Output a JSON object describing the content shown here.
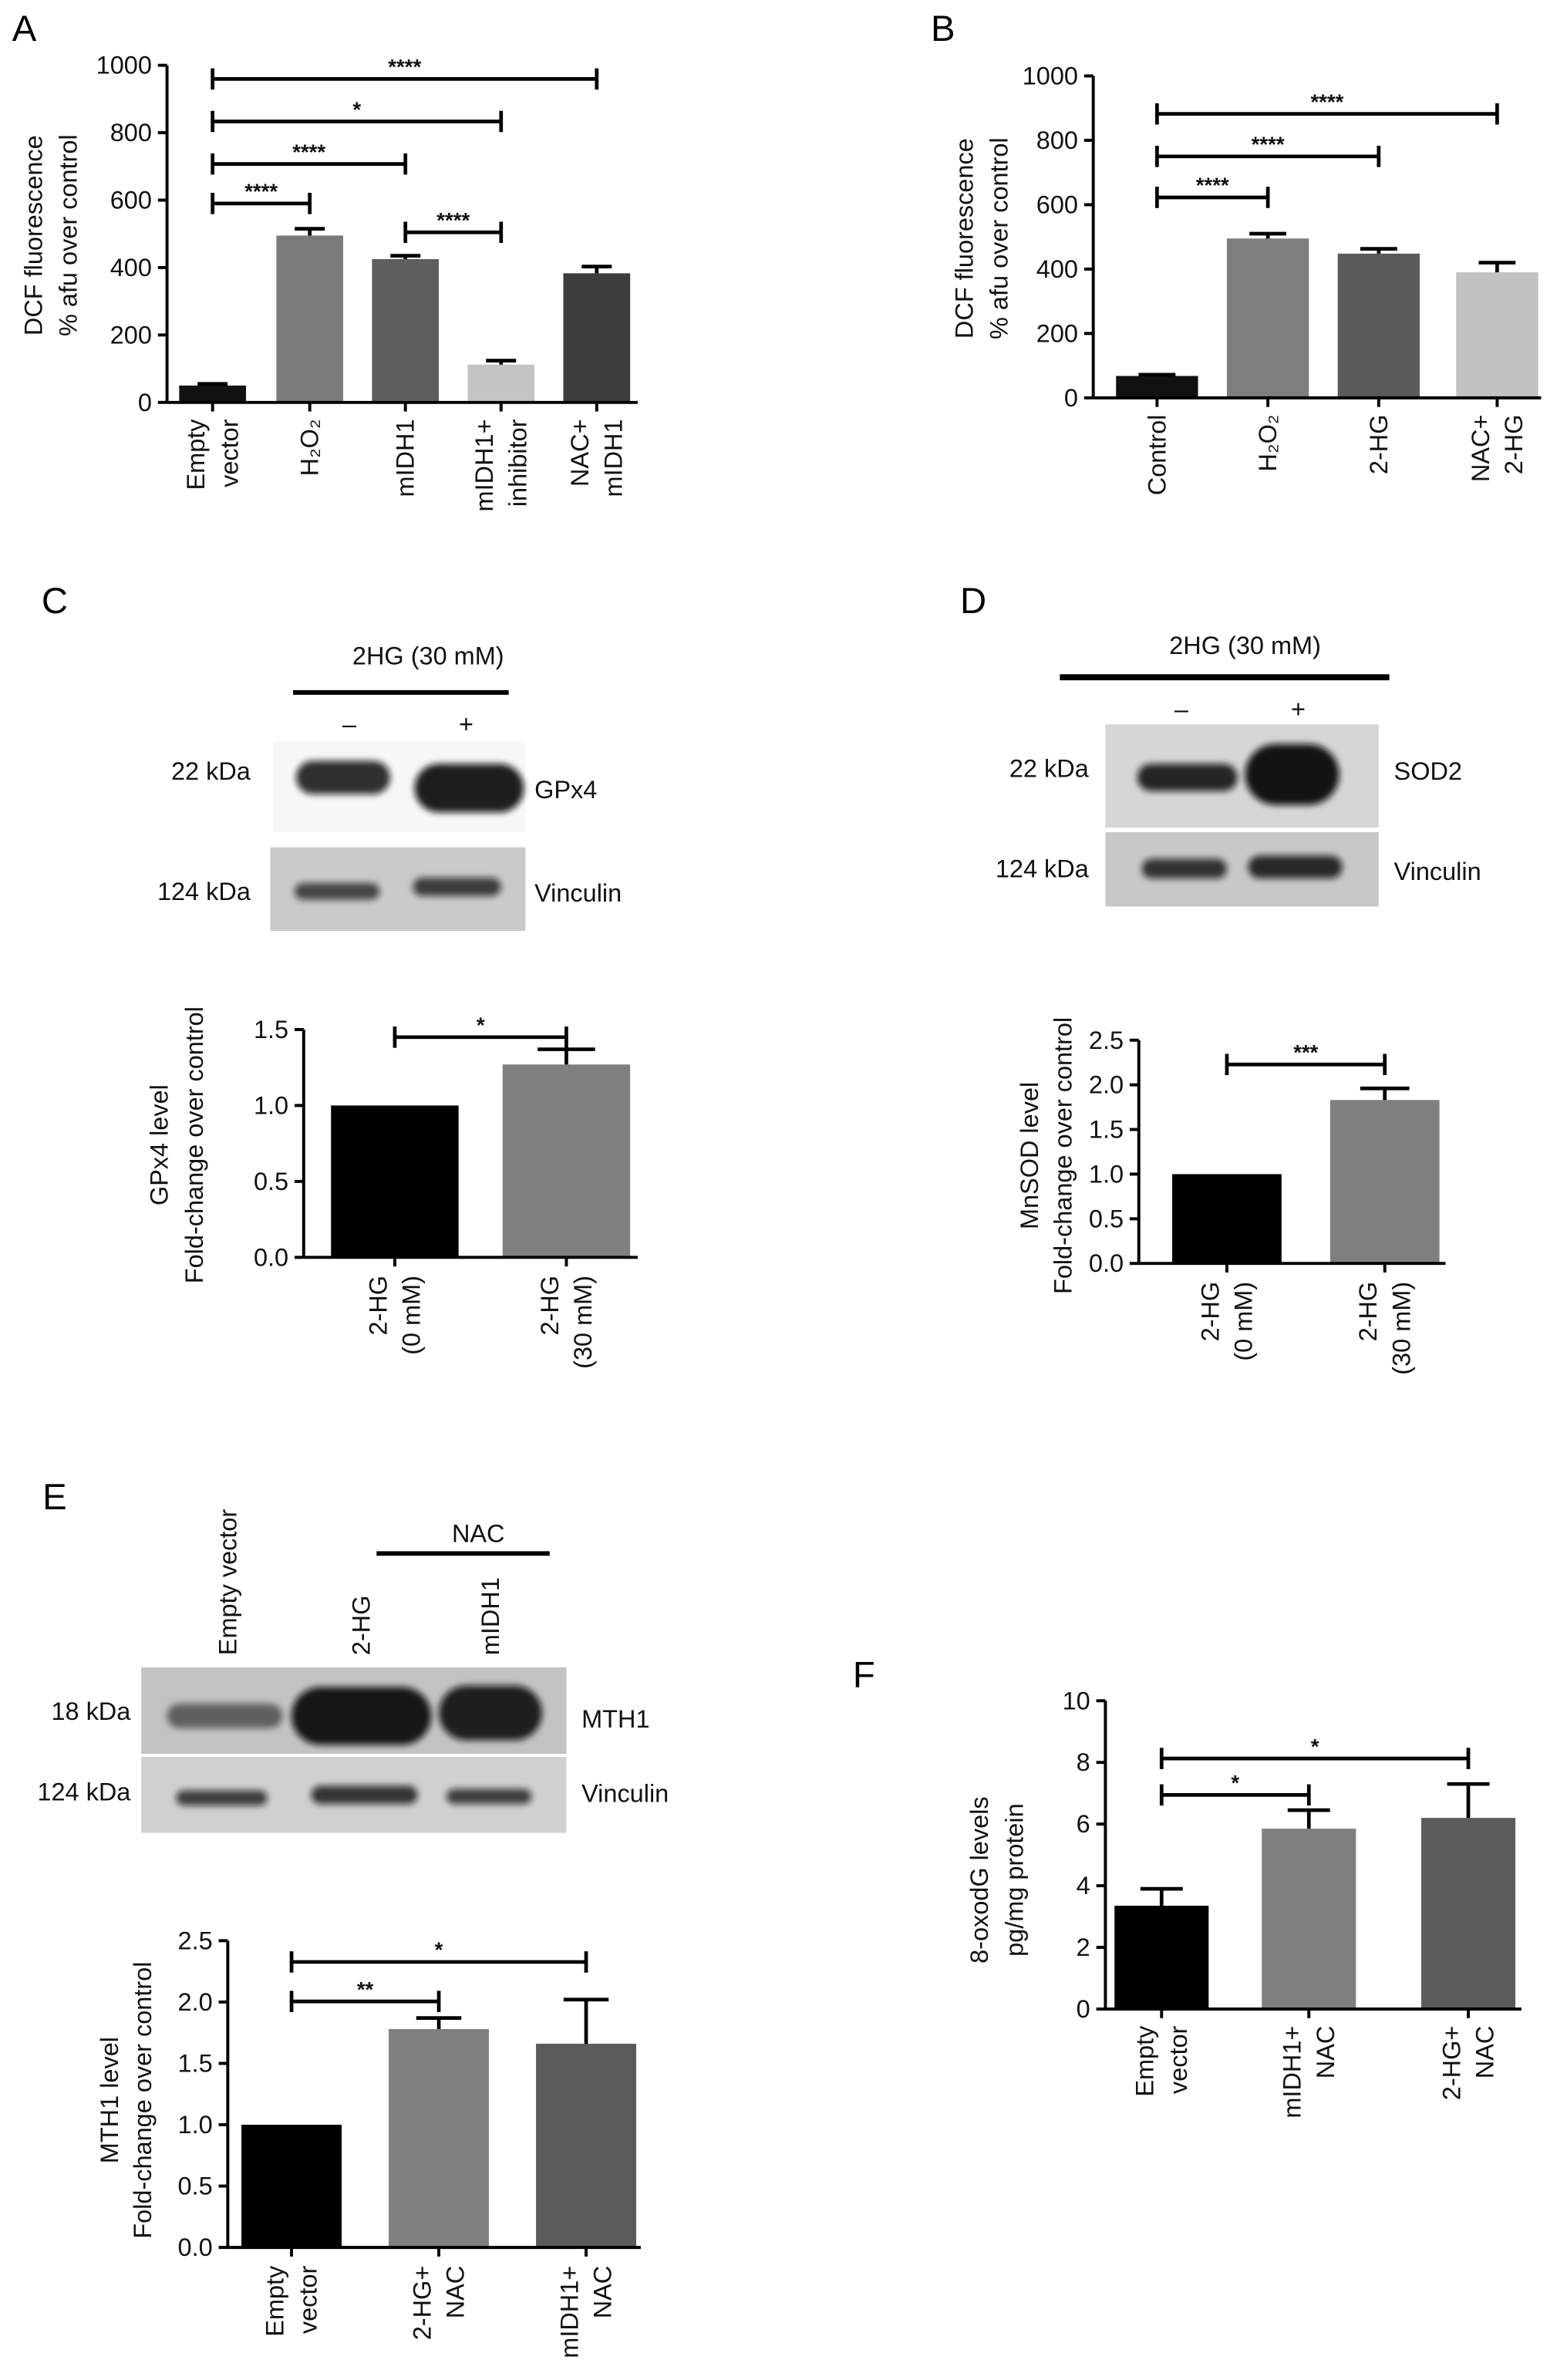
{
  "blots": {
    "C": {
      "treatment": "2HG (30 mM)",
      "lanes": [
        "–",
        "+"
      ],
      "rows": [
        {
          "kda": "22 kDa",
          "protein": "GPx4"
        },
        {
          "kda": "124 kDa",
          "protein": "Vinculin"
        }
      ]
    },
    "D": {
      "treatment": "2HG (30 mM)",
      "lanes": [
        "–",
        "+"
      ],
      "rows": [
        {
          "kda": "22 kDa",
          "protein": "SOD2"
        },
        {
          "kda": "124 kDa",
          "protein": "Vinculin"
        }
      ]
    },
    "E": {
      "treatment": "NAC",
      "lanes": [
        "Empty vector",
        "2-HG",
        "mIDH1"
      ],
      "rows": [
        {
          "kda": "18 kDa",
          "protein": "MTH1"
        },
        {
          "kda": "124 kDa",
          "protein": "Vinculin"
        }
      ]
    }
  },
  "chart_data": [
    {
      "panel": "A",
      "type": "bar",
      "categories": [
        [
          "Empty",
          "vector"
        ],
        [
          "H₂O₂"
        ],
        [
          "mIDH1"
        ],
        [
          "mIDH1+",
          "inhibitor"
        ],
        [
          "NAC+",
          "mIDH1"
        ]
      ],
      "values": [
        50,
        495,
        425,
        112,
        383
      ],
      "errors": [
        5,
        20,
        10,
        12,
        20
      ],
      "colors": [
        "#111111",
        "#7b7b7b",
        "#5e5e5e",
        "#c4c4c4",
        "#3d3d3d"
      ],
      "ylabel": [
        "DCF fluorescence",
        "% afu over control"
      ],
      "ylim": [
        0,
        1000
      ],
      "yticks": [
        "0",
        "200",
        "400",
        "600",
        "800",
        "1000"
      ],
      "annotations": [
        {
          "from": 0,
          "to": 4,
          "label": "****"
        },
        {
          "from": 0,
          "to": 3,
          "label": "*"
        },
        {
          "from": 0,
          "to": 2,
          "label": "****"
        },
        {
          "from": 0,
          "to": 1,
          "label": "****"
        },
        {
          "from": 2,
          "to": 3,
          "label": "****"
        }
      ]
    },
    {
      "panel": "B",
      "type": "bar",
      "categories": [
        [
          "Control"
        ],
        [
          "H₂O₂"
        ],
        [
          "2-HG"
        ],
        [
          "NAC+",
          "2-HG"
        ]
      ],
      "values": [
        68,
        495,
        448,
        390
      ],
      "errors": [
        4,
        15,
        15,
        30
      ],
      "colors": [
        "#111111",
        "#7e7e7e",
        "#5a5a5a",
        "#c2c2c2"
      ],
      "ylabel": [
        "DCF fluorescence",
        "% afu over control"
      ],
      "ylim": [
        0,
        1000
      ],
      "yticks": [
        "0",
        "200",
        "400",
        "600",
        "800",
        "1000"
      ],
      "annotations": [
        {
          "from": 0,
          "to": 3,
          "label": "****"
        },
        {
          "from": 0,
          "to": 2,
          "label": "****"
        },
        {
          "from": 0,
          "to": 1,
          "label": "****"
        }
      ]
    },
    {
      "panel": "C",
      "type": "bar",
      "categories": [
        [
          "2-HG",
          "(0 mM)"
        ],
        [
          "2-HG",
          "(30 mM)"
        ]
      ],
      "values": [
        1.0,
        1.27
      ],
      "errors": [
        0,
        0.1
      ],
      "colors": [
        "#000000",
        "#7f7f7f"
      ],
      "ylabel": [
        "GPx4 level",
        "Fold-change over control"
      ],
      "ylim": [
        0,
        1.5
      ],
      "yticks": [
        "0.0",
        "0.5",
        "1.0",
        "1.5"
      ],
      "annotations": [
        {
          "from": 0,
          "to": 1,
          "label": "*"
        }
      ]
    },
    {
      "panel": "D",
      "type": "bar",
      "categories": [
        [
          "2-HG",
          "(0 mM)"
        ],
        [
          "2-HG",
          "(30 mM)"
        ]
      ],
      "values": [
        1.0,
        1.83
      ],
      "errors": [
        0,
        0.13
      ],
      "colors": [
        "#000000",
        "#7f7f7f"
      ],
      "ylabel": [
        "MnSOD level",
        "Fold-change over control"
      ],
      "ylim": [
        0,
        2.5
      ],
      "yticks": [
        "0.0",
        "0.5",
        "1.0",
        "1.5",
        "2.0",
        "2.5"
      ],
      "annotations": [
        {
          "from": 0,
          "to": 1,
          "label": "***"
        }
      ]
    },
    {
      "panel": "E",
      "type": "bar",
      "categories": [
        [
          "Empty",
          "vector"
        ],
        [
          "2-HG+",
          "NAC"
        ],
        [
          "mIDH1+",
          "NAC"
        ]
      ],
      "values": [
        1.0,
        1.78,
        1.66
      ],
      "errors": [
        0,
        0.09,
        0.36
      ],
      "colors": [
        "#000000",
        "#7f7f7f",
        "#5b5b5b"
      ],
      "ylabel": [
        "MTH1 level",
        "Fold-change over control"
      ],
      "ylim": [
        0,
        2.5
      ],
      "yticks": [
        "0.0",
        "0.5",
        "1.0",
        "1.5",
        "2.0",
        "2.5"
      ],
      "annotations": [
        {
          "from": 0,
          "to": 1,
          "label": "**"
        },
        {
          "from": 0,
          "to": 2,
          "label": "*"
        }
      ]
    },
    {
      "panel": "F",
      "type": "bar",
      "categories": [
        [
          "Empty",
          "vector"
        ],
        [
          "mIDH1+",
          "NAC"
        ],
        [
          "2-HG+",
          "NAC"
        ]
      ],
      "values": [
        3.35,
        5.85,
        6.2
      ],
      "errors": [
        0.55,
        0.6,
        1.1
      ],
      "colors": [
        "#000000",
        "#7f7f7f",
        "#5b5b5b"
      ],
      "ylabel": [
        "8-oxodG levels",
        "pg/mg protein"
      ],
      "ylim": [
        0,
        10
      ],
      "yticks": [
        "0",
        "2",
        "4",
        "6",
        "8",
        "10"
      ],
      "annotations": [
        {
          "from": 0,
          "to": 1,
          "label": "*"
        },
        {
          "from": 0,
          "to": 2,
          "label": "*"
        }
      ]
    }
  ]
}
